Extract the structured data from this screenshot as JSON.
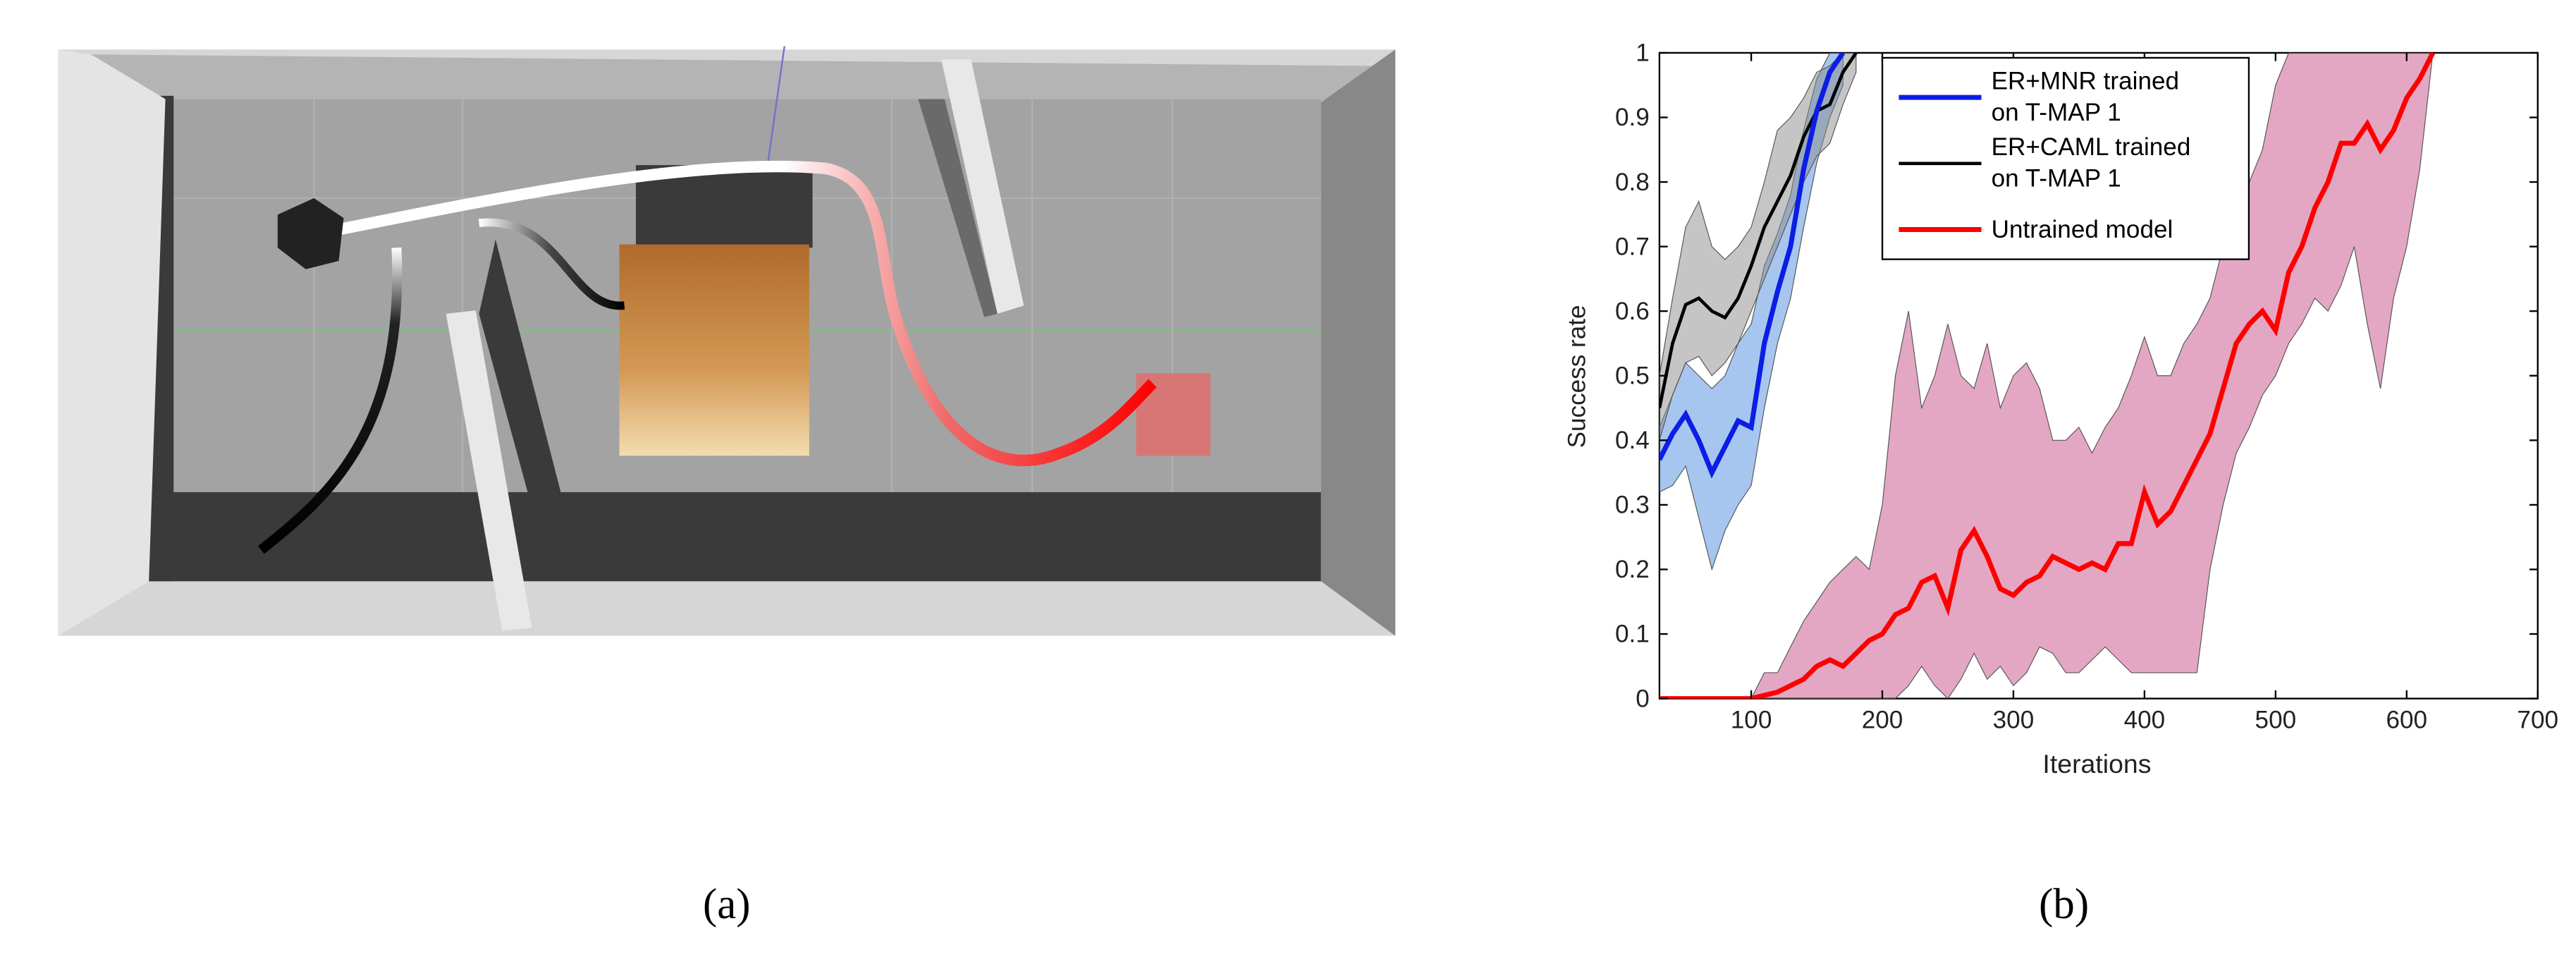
{
  "captions": [
    "(a)",
    "(b)"
  ],
  "chart_data": {
    "type": "line",
    "xlabel": "Iterations",
    "ylabel": "Success rate",
    "xlim": [
      30,
      700
    ],
    "ylim": [
      0,
      1
    ],
    "xticks": [
      100,
      200,
      300,
      400,
      500,
      600,
      700
    ],
    "yticks": [
      0,
      0.1,
      0.2,
      0.3,
      0.4,
      0.5,
      0.6,
      0.7,
      0.8,
      0.9,
      1
    ],
    "legend": "upper right",
    "series": [
      {
        "name": "ER+MNR trained on T-MAP 1",
        "color": "#0a1ee6",
        "band_color": "#4f8ee0",
        "x": [
          30,
          40,
          50,
          60,
          70,
          80,
          90,
          100,
          110,
          120,
          130,
          140,
          150,
          160,
          170
        ],
        "values": [
          0.37,
          0.41,
          0.44,
          0.4,
          0.35,
          0.39,
          0.43,
          0.42,
          0.55,
          0.63,
          0.7,
          0.82,
          0.91,
          0.97,
          1
        ],
        "lower": [
          0.32,
          0.33,
          0.36,
          0.28,
          0.2,
          0.26,
          0.3,
          0.33,
          0.45,
          0.55,
          0.62,
          0.73,
          0.83,
          0.9,
          0.95
        ],
        "upper": [
          0.42,
          0.47,
          0.52,
          0.5,
          0.48,
          0.5,
          0.55,
          0.58,
          0.67,
          0.72,
          0.78,
          0.88,
          0.96,
          1,
          1
        ]
      },
      {
        "name": "ER+CAML trained on T-MAP 1",
        "color": "#000000",
        "band_color": "#8c8c8c",
        "x": [
          30,
          40,
          50,
          60,
          70,
          80,
          90,
          100,
          110,
          120,
          130,
          140,
          150,
          160,
          170,
          180
        ],
        "values": [
          0.45,
          0.55,
          0.61,
          0.62,
          0.6,
          0.59,
          0.62,
          0.67,
          0.73,
          0.77,
          0.81,
          0.87,
          0.91,
          0.92,
          0.97,
          1
        ],
        "lower": [
          0.4,
          0.47,
          0.52,
          0.53,
          0.5,
          0.52,
          0.55,
          0.6,
          0.65,
          0.7,
          0.75,
          0.8,
          0.84,
          0.86,
          0.92,
          0.97
        ],
        "upper": [
          0.5,
          0.62,
          0.73,
          0.77,
          0.7,
          0.68,
          0.7,
          0.73,
          0.8,
          0.88,
          0.9,
          0.93,
          0.97,
          0.98,
          1,
          1
        ]
      },
      {
        "name": "Untrained model",
        "color": "#ff0000",
        "band_color": "#c8508a",
        "x": [
          30,
          40,
          50,
          60,
          70,
          80,
          90,
          100,
          110,
          120,
          130,
          140,
          150,
          160,
          170,
          180,
          190,
          200,
          210,
          220,
          230,
          240,
          250,
          260,
          270,
          280,
          290,
          300,
          310,
          320,
          330,
          340,
          350,
          360,
          370,
          380,
          390,
          400,
          410,
          420,
          430,
          440,
          450,
          460,
          470,
          480,
          490,
          500,
          510,
          520,
          530,
          540,
          550,
          560,
          570,
          580,
          590,
          600,
          610,
          620
        ],
        "values": [
          0,
          0,
          0,
          0,
          0,
          0,
          0,
          0,
          0.005,
          0.01,
          0.02,
          0.03,
          0.05,
          0.06,
          0.05,
          0.07,
          0.09,
          0.1,
          0.13,
          0.14,
          0.18,
          0.19,
          0.14,
          0.23,
          0.26,
          0.22,
          0.17,
          0.16,
          0.18,
          0.19,
          0.22,
          0.21,
          0.2,
          0.21,
          0.2,
          0.24,
          0.24,
          0.32,
          0.27,
          0.29,
          0.33,
          0.37,
          0.41,
          0.48,
          0.55,
          0.58,
          0.6,
          0.57,
          0.66,
          0.7,
          0.76,
          0.8,
          0.86,
          0.86,
          0.89,
          0.85,
          0.88,
          0.93,
          0.96,
          1
        ],
        "lower": [
          0,
          0,
          0,
          0,
          0,
          0,
          0,
          0,
          0,
          0,
          0,
          0,
          0,
          0,
          0,
          0,
          0,
          0,
          0,
          0.02,
          0.05,
          0.02,
          0,
          0.03,
          0.07,
          0.03,
          0.05,
          0.02,
          0.04,
          0.08,
          0.07,
          0.04,
          0.04,
          0.06,
          0.08,
          0.06,
          0.04,
          0.04,
          0.04,
          0.04,
          0.04,
          0.04,
          0.2,
          0.3,
          0.38,
          0.42,
          0.47,
          0.5,
          0.55,
          0.58,
          0.62,
          0.6,
          0.64,
          0.7,
          0.58,
          0.48,
          0.62,
          0.7,
          0.82,
          1
        ],
        "upper": [
          0,
          0,
          0,
          0,
          0,
          0,
          0,
          0,
          0.04,
          0.04,
          0.08,
          0.12,
          0.15,
          0.18,
          0.2,
          0.22,
          0.2,
          0.3,
          0.5,
          0.6,
          0.45,
          0.5,
          0.58,
          0.5,
          0.48,
          0.55,
          0.45,
          0.5,
          0.52,
          0.48,
          0.4,
          0.4,
          0.42,
          0.38,
          0.42,
          0.45,
          0.5,
          0.56,
          0.5,
          0.5,
          0.55,
          0.58,
          0.62,
          0.7,
          0.75,
          0.8,
          0.85,
          0.95,
          1,
          1,
          1,
          1,
          1,
          1,
          1,
          1,
          1,
          1,
          1,
          1
        ]
      }
    ]
  }
}
